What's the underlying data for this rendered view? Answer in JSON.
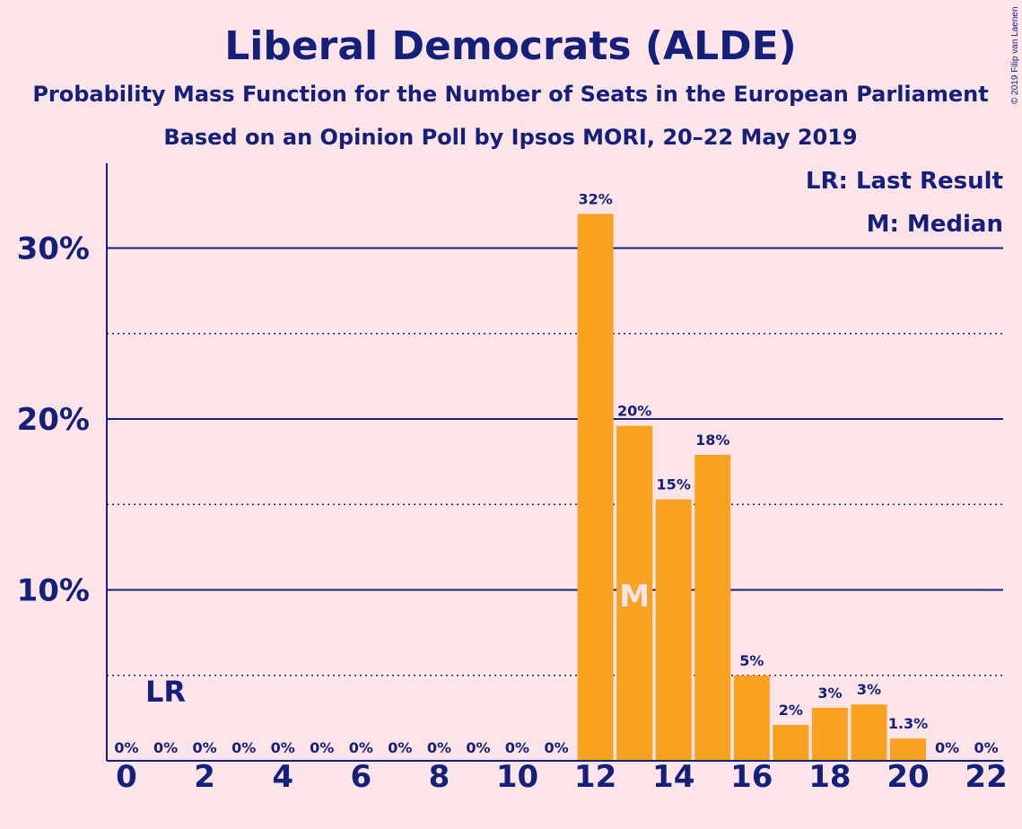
{
  "chart_data": {
    "type": "bar",
    "title": "Liberal Democrats (ALDE)",
    "subtitle": "Probability Mass Function for the Number of Seats in the European Parliament",
    "subtitle2": "Based on an Opinion Poll by Ipsos MORI, 20–22 May 2019",
    "copyright": "© 2019 Filip van Laenen",
    "legend": [
      "LR: Last Result",
      "M: Median"
    ],
    "x": [
      0,
      1,
      2,
      3,
      4,
      5,
      6,
      7,
      8,
      9,
      10,
      11,
      12,
      13,
      14,
      15,
      16,
      17,
      18,
      19,
      20,
      21,
      22
    ],
    "values": [
      0,
      0,
      0,
      0,
      0,
      0,
      0,
      0,
      0,
      0,
      0,
      0,
      32.0,
      19.6,
      15.3,
      17.9,
      5.0,
      2.1,
      3.1,
      3.3,
      1.3,
      0,
      0
    ],
    "labels": [
      "0%",
      "0%",
      "0%",
      "0%",
      "0%",
      "0%",
      "0%",
      "0%",
      "0%",
      "0%",
      "0%",
      "0%",
      "32%",
      "20%",
      "15%",
      "18%",
      "5%",
      "2%",
      "3%",
      "3%",
      "1.3%",
      "0%",
      "0%"
    ],
    "x_ticks": [
      "0",
      "2",
      "4",
      "6",
      "8",
      "10",
      "12",
      "14",
      "16",
      "18",
      "20",
      "22"
    ],
    "y_ticks": [
      "10%",
      "20%",
      "30%"
    ],
    "y_tick_values": [
      10,
      20,
      30
    ],
    "y_minor_values": [
      5,
      15,
      25
    ],
    "ylim": [
      0,
      35
    ],
    "last_result": {
      "seat": 1,
      "label": "LR"
    },
    "median": {
      "seat": 13,
      "label": "M"
    },
    "colors": {
      "bar": "#f8a21f",
      "text": "#15207a",
      "background": "#fde4e8"
    }
  }
}
